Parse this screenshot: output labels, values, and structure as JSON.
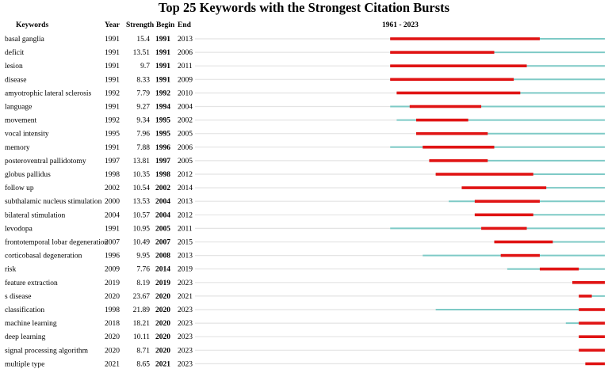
{
  "chart_data": {
    "type": "citation-burst-timeline",
    "title": "Top 25 Keywords with the Strongest Citation Bursts",
    "columns": [
      "Keywords",
      "Year",
      "Strength",
      "Begin",
      "End",
      "1961 - 2023"
    ],
    "time_range_label": "1961 - 2023",
    "xlim": [
      1961,
      2023
    ],
    "colors": {
      "timeline": "#7ecac6",
      "burst": "#e01414"
    },
    "rows": [
      {
        "keyword": "basal ganglia",
        "year": 1991,
        "strength": "15.4",
        "begin": 1991,
        "end": 2013
      },
      {
        "keyword": "deficit",
        "year": 1991,
        "strength": "13.51",
        "begin": 1991,
        "end": 2006
      },
      {
        "keyword": "lesion",
        "year": 1991,
        "strength": "9.7",
        "begin": 1991,
        "end": 2011
      },
      {
        "keyword": "disease",
        "year": 1991,
        "strength": "8.33",
        "begin": 1991,
        "end": 2009
      },
      {
        "keyword": "amyotrophic lateral sclerosis",
        "year": 1992,
        "strength": "7.79",
        "begin": 1992,
        "end": 2010
      },
      {
        "keyword": "language",
        "year": 1991,
        "strength": "9.27",
        "begin": 1994,
        "end": 2004
      },
      {
        "keyword": "movement",
        "year": 1992,
        "strength": "9.34",
        "begin": 1995,
        "end": 2002
      },
      {
        "keyword": "vocal intensity",
        "year": 1995,
        "strength": "7.96",
        "begin": 1995,
        "end": 2005
      },
      {
        "keyword": "memory",
        "year": 1991,
        "strength": "7.88",
        "begin": 1996,
        "end": 2006
      },
      {
        "keyword": "posteroventral pallidotomy",
        "year": 1997,
        "strength": "13.81",
        "begin": 1997,
        "end": 2005
      },
      {
        "keyword": "globus pallidus",
        "year": 1998,
        "strength": "10.35",
        "begin": 1998,
        "end": 2012
      },
      {
        "keyword": "follow up",
        "year": 2002,
        "strength": "10.54",
        "begin": 2002,
        "end": 2014
      },
      {
        "keyword": "subthalamic nucleus stimulation",
        "year": 2000,
        "strength": "13.53",
        "begin": 2004,
        "end": 2013
      },
      {
        "keyword": "bilateral stimulation",
        "year": 2004,
        "strength": "10.57",
        "begin": 2004,
        "end": 2012
      },
      {
        "keyword": "levodopa",
        "year": 1991,
        "strength": "10.95",
        "begin": 2005,
        "end": 2011
      },
      {
        "keyword": "frontotemporal lobar degeneration",
        "year": 2007,
        "strength": "10.49",
        "begin": 2007,
        "end": 2015
      },
      {
        "keyword": "corticobasal degeneration",
        "year": 1996,
        "strength": "9.95",
        "begin": 2008,
        "end": 2013
      },
      {
        "keyword": "risk",
        "year": 2009,
        "strength": "7.76",
        "begin": 2014,
        "end": 2019
      },
      {
        "keyword": "feature extraction",
        "year": 2019,
        "strength": "8.19",
        "begin": 2019,
        "end": 2023
      },
      {
        "keyword": "s disease",
        "year": 2020,
        "strength": "23.67",
        "begin": 2020,
        "end": 2021
      },
      {
        "keyword": "classification",
        "year": 1998,
        "strength": "21.89",
        "begin": 2020,
        "end": 2023
      },
      {
        "keyword": "machine learning",
        "year": 2018,
        "strength": "18.21",
        "begin": 2020,
        "end": 2023
      },
      {
        "keyword": "deep learning",
        "year": 2020,
        "strength": "10.11",
        "begin": 2020,
        "end": 2023
      },
      {
        "keyword": "signal processing algorithm",
        "year": 2020,
        "strength": "8.71",
        "begin": 2020,
        "end": 2023
      },
      {
        "keyword": "multiple type",
        "year": 2021,
        "strength": "8.65",
        "begin": 2021,
        "end": 2023
      }
    ]
  }
}
